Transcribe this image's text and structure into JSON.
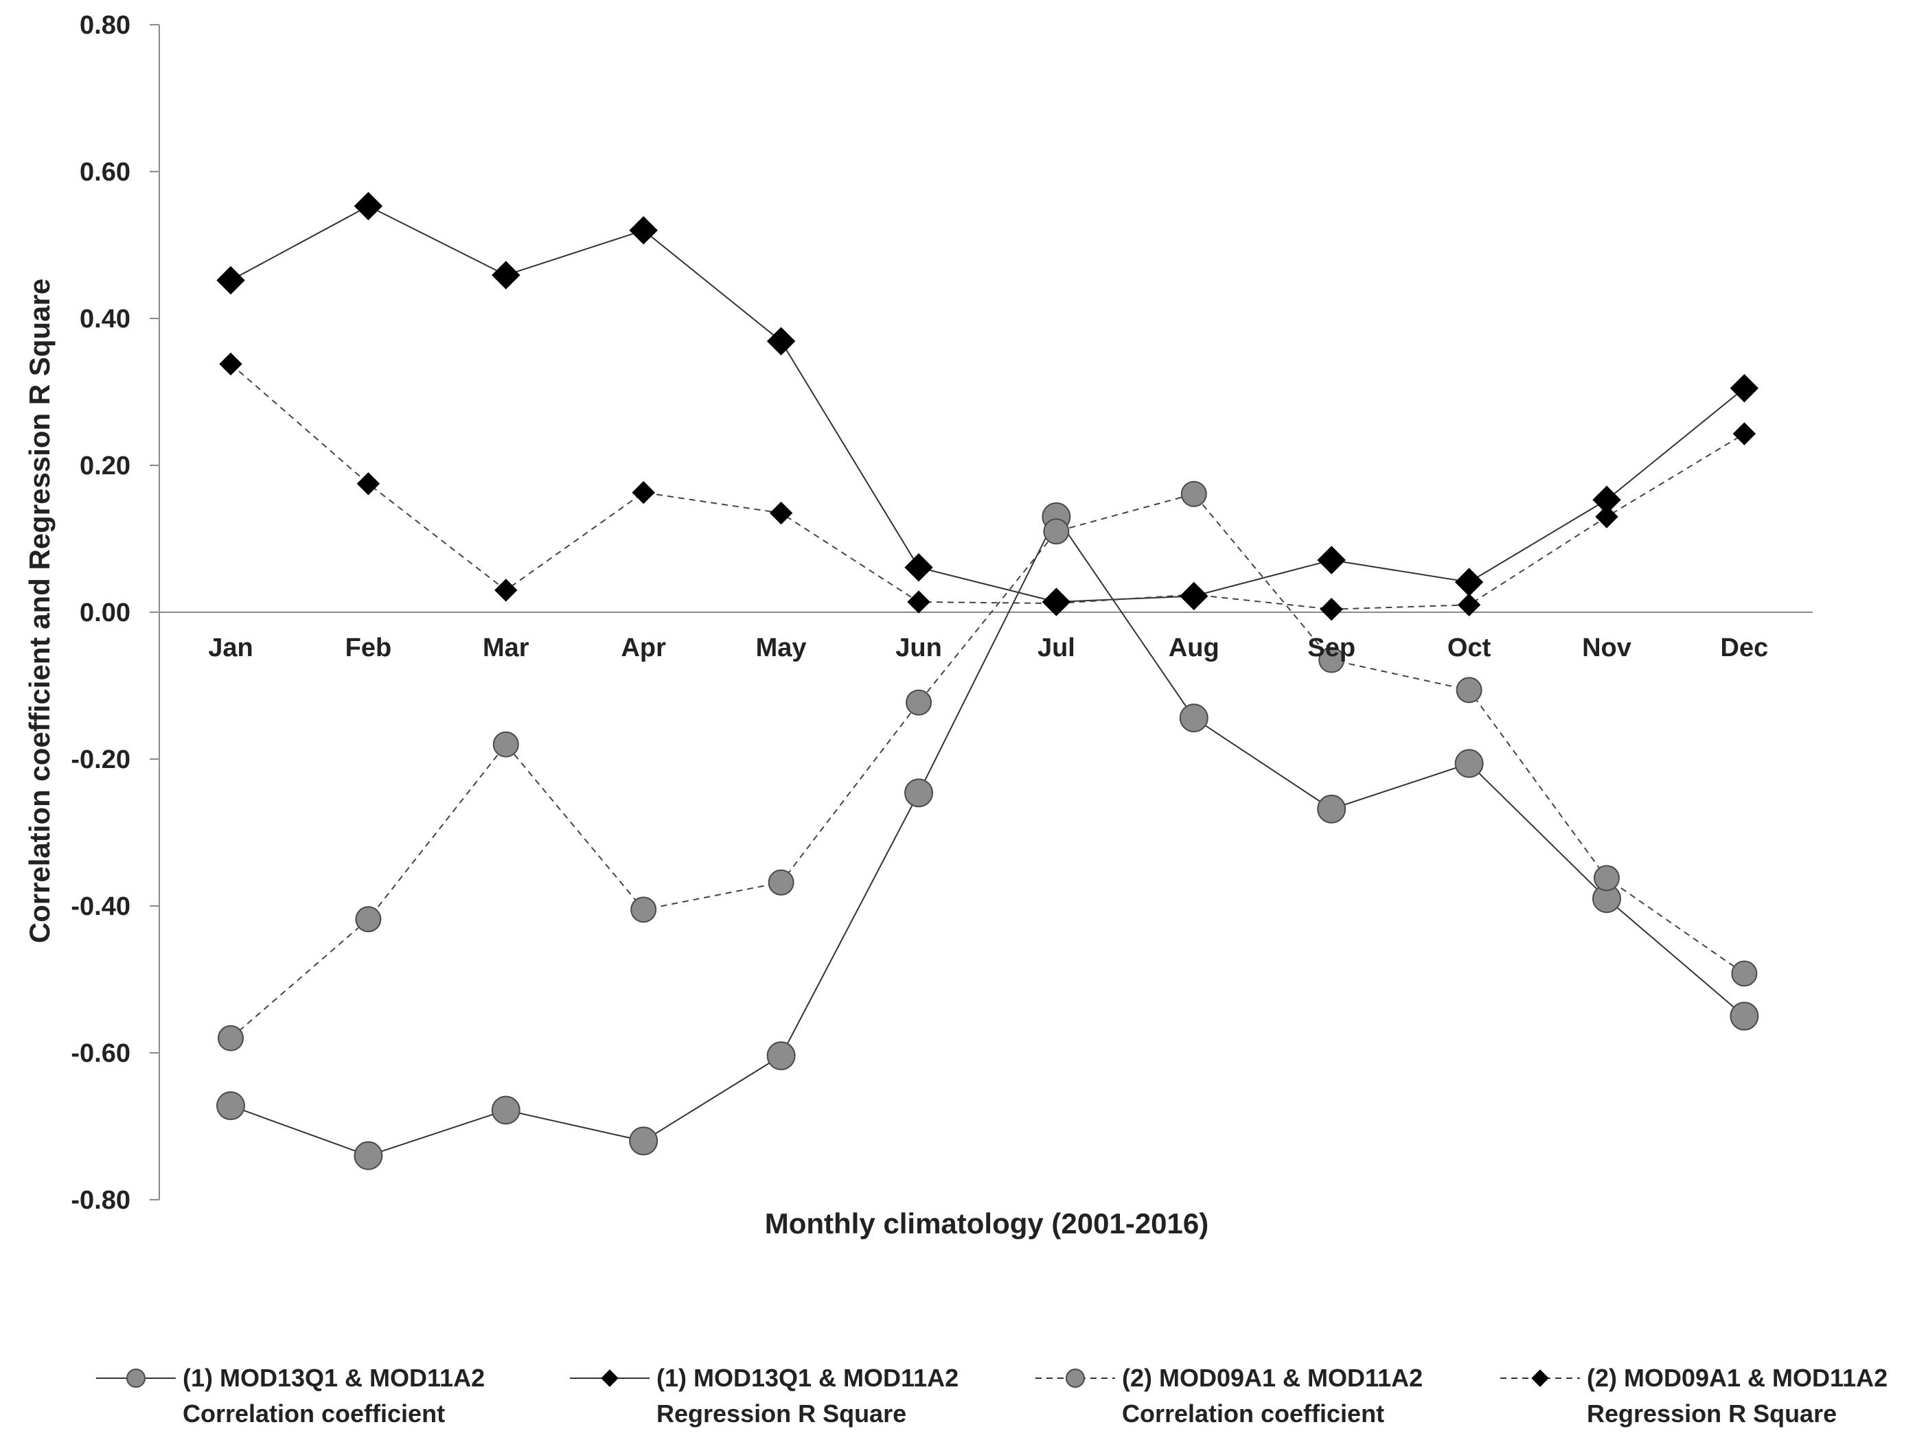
{
  "chart_data": {
    "type": "line",
    "title": "",
    "xlabel": "Monthly climatology (2001-2016)",
    "ylabel": "Correlation coefficient and Regression R Square",
    "categories": [
      "Jan",
      "Feb",
      "Mar",
      "Apr",
      "May",
      "Jun",
      "Jul",
      "Aug",
      "Sep",
      "Oct",
      "Nov",
      "Dec"
    ],
    "ylim": [
      -0.8,
      0.8
    ],
    "yticks": [
      "0.80",
      "0.60",
      "0.40",
      "0.20",
      "0.00",
      "-0.20",
      "-0.40",
      "-0.60",
      "-0.80"
    ],
    "grid": false,
    "legend_position": "bottom",
    "series": [
      {
        "legend_line1": "(1) MOD13Q1  & MOD11A2",
        "legend_line2": "Correlation coefficient",
        "marker": "circle",
        "line_style": "solid",
        "marker_color": "#8c8c8c",
        "values": [
          -0.672,
          -0.74,
          -0.678,
          -0.72,
          -0.604,
          -0.246,
          0.13,
          -0.144,
          -0.268,
          -0.206,
          -0.39,
          -0.55
        ]
      },
      {
        "legend_line1": "(1) MOD13Q1 & MOD11A2",
        "legend_line2": "Regression R Square",
        "marker": "diamond",
        "line_style": "solid",
        "marker_color": "#000000",
        "values": [
          0.452,
          0.553,
          0.459,
          0.52,
          0.369,
          0.061,
          0.014,
          0.022,
          0.071,
          0.041,
          0.153,
          0.305
        ]
      },
      {
        "legend_line1": "(2) MOD09A1 & MOD11A2",
        "legend_line2": "Correlation coefficient",
        "marker": "circle",
        "line_style": "dashed",
        "marker_color": "#8c8c8c",
        "values": [
          -0.58,
          -0.418,
          -0.18,
          -0.405,
          -0.368,
          -0.123,
          0.11,
          0.161,
          -0.065,
          -0.106,
          -0.362,
          -0.492
        ]
      },
      {
        "legend_line1": "(2) MOD09A1 & MOD11A2",
        "legend_line2": "Regression R Square",
        "marker": "diamond",
        "line_style": "dashed",
        "marker_color": "#000000",
        "values": [
          0.338,
          0.175,
          0.03,
          0.163,
          0.135,
          0.014,
          0.012,
          0.024,
          0.004,
          0.01,
          0.13,
          0.243
        ]
      }
    ]
  }
}
